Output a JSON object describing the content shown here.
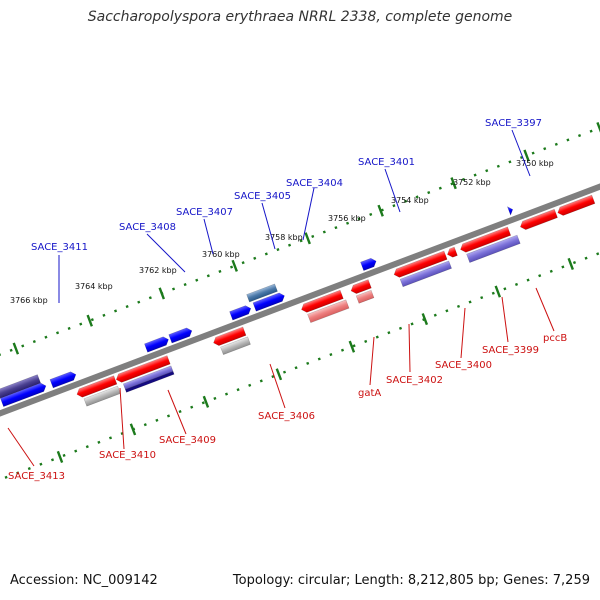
{
  "title": "Saccharopolyspora erythraea NRRL 2338, complete genome",
  "footer": {
    "accession": "Accession: NC_009142",
    "summary": "Topology: circular; Length: 8,212,805 bp; Genes: 7,259"
  },
  "colors": {
    "backbone": "#7f7f7f",
    "tick": "#1c7a1c",
    "forward_label": "#1515c8",
    "reverse_label": "#cc1111"
  },
  "ruler_labels": [
    "3766 kbp",
    "3764 kbp",
    "3762 kbp",
    "3760 kbp",
    "3758 kbp",
    "3756 kbp",
    "3754 kbp",
    "3752 kbp",
    "3750 kbp"
  ],
  "forward_gene_labels": [
    "SACE_3411",
    "SACE_3408",
    "SACE_3407",
    "SACE_3405",
    "SACE_3404",
    "SACE_3401",
    "SACE_3397"
  ],
  "reverse_gene_labels": [
    "SACE_3413",
    "SACE_3410",
    "SACE_3409",
    "SACE_3406",
    "gatA",
    "SACE_3402",
    "SACE_3400",
    "SACE_3399",
    "pccB"
  ]
}
